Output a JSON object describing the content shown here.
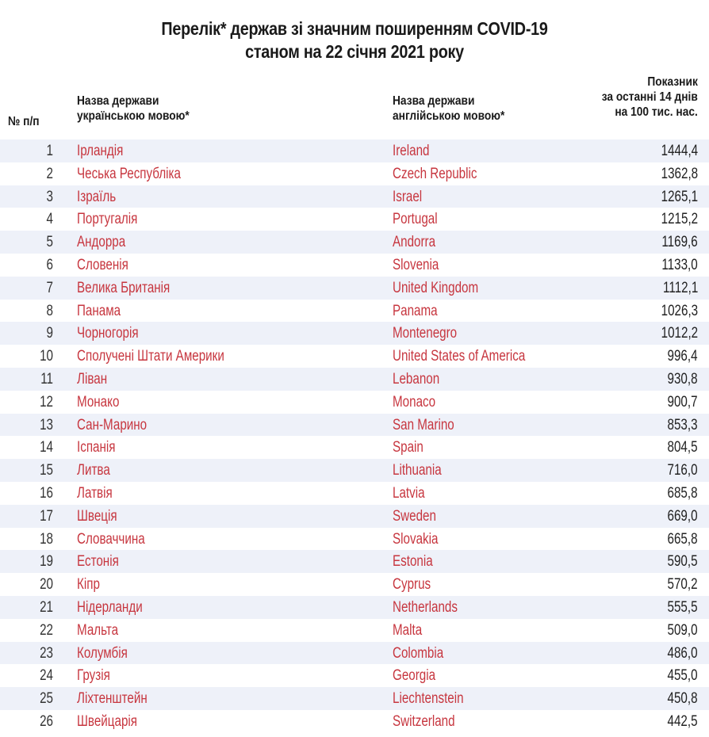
{
  "title": {
    "line1": "Перелік* держав зі значним поширенням COVID-19",
    "line2": "станом на 22 січня 2021 року"
  },
  "header": {
    "num": "№ п/п",
    "ua_line1": "Назва держави",
    "ua_line2": "українською мовою*",
    "en_line1": "Назва держави",
    "en_line2": "англійською мовою*",
    "ind_line1": "Показник",
    "ind_line2": "за останні 14 днів",
    "ind_line3": "на 100 тис. нас."
  },
  "colors": {
    "country_text": "#c7363f",
    "stripe": "#eef1f9"
  },
  "rows": [
    {
      "num": "1",
      "ua": "Ірландія",
      "en": "Ireland",
      "val": "1444,4"
    },
    {
      "num": "2",
      "ua": "Чеська Республіка",
      "en": "Czech Republic",
      "val": "1362,8"
    },
    {
      "num": "3",
      "ua": "Ізраїль",
      "en": "Israel",
      "val": "1265,1"
    },
    {
      "num": "4",
      "ua": "Португалія",
      "en": "Portugal",
      "val": "1215,2"
    },
    {
      "num": "5",
      "ua": "Андорра",
      "en": "Andorra",
      "val": "1169,6"
    },
    {
      "num": "6",
      "ua": "Словенія",
      "en": "Slovenia",
      "val": "1133,0"
    },
    {
      "num": "7",
      "ua": "Велика Британія",
      "en": "United Kingdom",
      "val": "1112,1"
    },
    {
      "num": "8",
      "ua": "Панама",
      "en": "Panama",
      "val": "1026,3"
    },
    {
      "num": "9",
      "ua": "Чорногорія",
      "en": "Montenegro",
      "val": "1012,2"
    },
    {
      "num": "10",
      "ua": "Сполучені Штати Америки",
      "en": "United States of America",
      "val": "996,4"
    },
    {
      "num": "11",
      "ua": "Ліван",
      "en": "Lebanon",
      "val": "930,8"
    },
    {
      "num": "12",
      "ua": "Монако",
      "en": "Monaco",
      "val": "900,7"
    },
    {
      "num": "13",
      "ua": "Сан-Марино",
      "en": "San Marino",
      "val": "853,3"
    },
    {
      "num": "14",
      "ua": "Іспанія",
      "en": "Spain",
      "val": "804,5"
    },
    {
      "num": "15",
      "ua": "Литва",
      "en": "Lithuania",
      "val": "716,0"
    },
    {
      "num": "16",
      "ua": "Латвія",
      "en": "Latvia",
      "val": "685,8"
    },
    {
      "num": "17",
      "ua": "Швеція",
      "en": "Sweden",
      "val": "669,0"
    },
    {
      "num": "18",
      "ua": "Словаччина",
      "en": "Slovakia",
      "val": "665,8"
    },
    {
      "num": "19",
      "ua": "Естонія",
      "en": "Estonia",
      "val": "590,5"
    },
    {
      "num": "20",
      "ua": "Кіпр",
      "en": "Cyprus",
      "val": "570,2"
    },
    {
      "num": "21",
      "ua": "Нідерланди",
      "en": "Netherlands",
      "val": "555,5"
    },
    {
      "num": "22",
      "ua": "Мальта",
      "en": "Malta",
      "val": "509,0"
    },
    {
      "num": "23",
      "ua": "Колумбія",
      "en": "Colombia",
      "val": "486,0"
    },
    {
      "num": "24",
      "ua": "Грузія",
      "en": "Georgia",
      "val": "455,0"
    },
    {
      "num": "25",
      "ua": "Ліхтенштейн",
      "en": "Liechtenstein",
      "val": "450,8"
    },
    {
      "num": "26",
      "ua": "Швейцарія",
      "en": "Switzerland",
      "val": "442,5"
    }
  ]
}
